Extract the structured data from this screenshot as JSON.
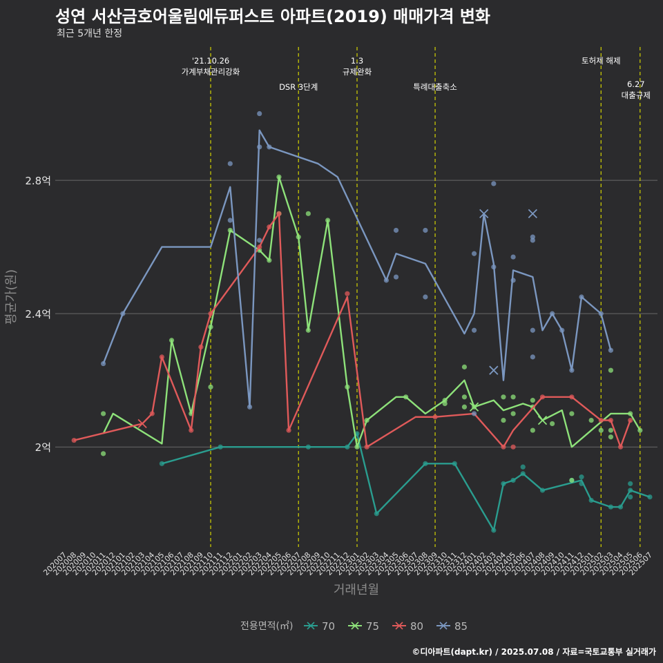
{
  "header": {
    "title": "성연 서산금호어울림에듀퍼스트 아파트(2019) 매매가격 변화",
    "subtitle": "최근 5개년 한정"
  },
  "caption": "©디아파트(dapt.kr) / 2025.07.08 / 자료=국토교통부 실거래가",
  "colors": {
    "background": "#2b2b2d",
    "grid": "#6a6a6a",
    "event_line": "#d4d400",
    "s70": "#2a9d8f",
    "s75": "#8ee27a",
    "s80": "#e05a5a",
    "s85": "#7b97c0"
  },
  "chart_data": {
    "type": "line",
    "xlabel": "거래년월",
    "ylabel": "평균가(원)",
    "x_categories": [
      "202007",
      "202008",
      "202009",
      "202010",
      "202011",
      "202012",
      "202101",
      "202102",
      "202103",
      "202104",
      "202105",
      "202106",
      "202107",
      "202108",
      "202109",
      "202110",
      "202111",
      "202112",
      "202201",
      "202202",
      "202203",
      "202204",
      "202205",
      "202206",
      "202207",
      "202208",
      "202209",
      "202210",
      "202211",
      "202212",
      "202301",
      "202302",
      "202303",
      "202304",
      "202305",
      "202306",
      "202307",
      "202308",
      "202309",
      "202310",
      "202311",
      "202312",
      "202401",
      "202402",
      "202403",
      "202404",
      "202405",
      "202406",
      "202407",
      "202408",
      "202409",
      "202410",
      "202411",
      "202412",
      "202501",
      "202502",
      "202503",
      "202504",
      "202505",
      "202506",
      "202507"
    ],
    "y_range_eok": [
      1.7,
      3.2
    ],
    "y_ticks": [
      {
        "value": 2.0,
        "label": "2억"
      },
      {
        "value": 2.4,
        "label": "2.4억"
      },
      {
        "value": 2.8,
        "label": "2.8억"
      }
    ],
    "grid": true,
    "legend": {
      "title": "전용면적(㎡)",
      "position": "bottom",
      "items": [
        {
          "label": "70",
          "series": "s70"
        },
        {
          "label": "75",
          "series": "s75"
        },
        {
          "label": "80",
          "series": "s80"
        },
        {
          "label": "85",
          "series": "s85"
        }
      ]
    },
    "events": [
      {
        "x": "202110",
        "lines": [
          "'21.10.26",
          "가계부채관리강화"
        ],
        "level": 0
      },
      {
        "x": "202207",
        "lines": [
          "DSR 3단계"
        ],
        "level": 1
      },
      {
        "x": "202301",
        "lines": [
          "1.3",
          "규제완화"
        ],
        "level": 0
      },
      {
        "x": "202309",
        "lines": [
          "특례대출축소"
        ],
        "level": 1
      },
      {
        "x": "202502",
        "lines": [
          "토허제 해제"
        ],
        "level": 0
      },
      {
        "x": "202506",
        "lines": [
          "6.27",
          "대출규제"
        ],
        "level": 2
      }
    ],
    "series": [
      {
        "name": "70",
        "color_key": "s70",
        "line": [
          [
            202105,
            1.95
          ],
          [
            202111,
            2.0
          ],
          [
            202212,
            2.0
          ],
          [
            202301,
            2.04
          ],
          [
            202303,
            1.8
          ],
          [
            202308,
            1.95
          ],
          [
            202311,
            1.95
          ],
          [
            202403,
            1.75
          ],
          [
            202404,
            1.89
          ],
          [
            202405,
            1.9
          ],
          [
            202406,
            1.92
          ],
          [
            202408,
            1.87
          ],
          [
            202412,
            1.9
          ],
          [
            202501,
            1.84
          ],
          [
            202503,
            1.82
          ],
          [
            202504,
            1.82
          ],
          [
            202505,
            1.87
          ],
          [
            202507,
            1.85
          ]
        ],
        "points": [
          [
            202105,
            1.95
          ],
          [
            202111,
            2.0
          ],
          [
            202208,
            2.0
          ],
          [
            202212,
            2.0
          ],
          [
            202301,
            2.04
          ],
          [
            202303,
            1.8
          ],
          [
            202308,
            1.95
          ],
          [
            202311,
            1.95
          ],
          [
            202403,
            1.75
          ],
          [
            202404,
            1.89
          ],
          [
            202405,
            1.9
          ],
          [
            202406,
            1.94
          ],
          [
            202406,
            1.92
          ],
          [
            202408,
            1.87
          ],
          [
            202411,
            1.9
          ],
          [
            202412,
            1.91
          ],
          [
            202412,
            1.89
          ],
          [
            202501,
            1.84
          ],
          [
            202503,
            1.82
          ],
          [
            202504,
            1.82
          ],
          [
            202505,
            1.87
          ],
          [
            202505,
            1.89
          ],
          [
            202505,
            1.85
          ],
          [
            202507,
            1.85
          ]
        ],
        "crosses": []
      },
      {
        "name": "75",
        "color_key": "s75",
        "line": [
          [
            202011,
            2.04
          ],
          [
            202012,
            2.1
          ],
          [
            202105,
            2.01
          ],
          [
            202106,
            2.32
          ],
          [
            202108,
            2.1
          ],
          [
            202110,
            2.36
          ],
          [
            202112,
            2.65
          ],
          [
            202203,
            2.59
          ],
          [
            202204,
            2.56
          ],
          [
            202205,
            2.81
          ],
          [
            202207,
            2.63
          ],
          [
            202208,
            2.35
          ],
          [
            202210,
            2.68
          ],
          [
            202212,
            2.18
          ],
          [
            202301,
            2.0
          ],
          [
            202302,
            2.08
          ],
          [
            202305,
            2.15
          ],
          [
            202306,
            2.15
          ],
          [
            202308,
            2.1
          ],
          [
            202310,
            2.14
          ],
          [
            202312,
            2.2
          ],
          [
            202401,
            2.12
          ],
          [
            202403,
            2.14
          ],
          [
            202404,
            2.11
          ],
          [
            202406,
            2.13
          ],
          [
            202407,
            2.12
          ],
          [
            202408,
            2.08
          ],
          [
            202410,
            2.11
          ],
          [
            202411,
            2.0
          ],
          [
            202501,
            2.05
          ],
          [
            202503,
            2.1
          ],
          [
            202505,
            2.1
          ],
          [
            202506,
            2.05
          ]
        ],
        "points": [
          [
            202011,
            2.1
          ],
          [
            202011,
            1.98
          ],
          [
            202106,
            2.32
          ],
          [
            202108,
            2.1
          ],
          [
            202110,
            2.18
          ],
          [
            202110,
            2.36
          ],
          [
            202112,
            2.65
          ],
          [
            202203,
            2.59
          ],
          [
            202204,
            2.56
          ],
          [
            202205,
            2.81
          ],
          [
            202205,
            2.7
          ],
          [
            202207,
            2.63
          ],
          [
            202208,
            2.7
          ],
          [
            202208,
            2.35
          ],
          [
            202210,
            2.68
          ],
          [
            202212,
            2.18
          ],
          [
            202301,
            2.0
          ],
          [
            202302,
            2.08
          ],
          [
            202306,
            2.15
          ],
          [
            202310,
            2.14
          ],
          [
            202310,
            2.13
          ],
          [
            202312,
            2.24
          ],
          [
            202312,
            2.15
          ],
          [
            202312,
            2.12
          ],
          [
            202401,
            2.12
          ],
          [
            202404,
            2.15
          ],
          [
            202404,
            2.08
          ],
          [
            202405,
            2.15
          ],
          [
            202405,
            2.1
          ],
          [
            202407,
            2.14
          ],
          [
            202407,
            2.12
          ],
          [
            202407,
            2.05
          ],
          [
            202409,
            2.07
          ],
          [
            202411,
            2.1
          ],
          [
            202411,
            1.9
          ],
          [
            202501,
            2.08
          ],
          [
            202502,
            2.05
          ],
          [
            202503,
            2.23
          ],
          [
            202503,
            2.05
          ],
          [
            202503,
            2.03
          ],
          [
            202505,
            2.1
          ],
          [
            202506,
            2.05
          ]
        ],
        "crosses": [
          [
            202401,
            2.12
          ],
          [
            202408,
            2.08
          ]
        ]
      },
      {
        "name": "80",
        "color_key": "s80",
        "line": [
          [
            202008,
            2.02
          ],
          [
            202103,
            2.07
          ],
          [
            202104,
            2.1
          ],
          [
            202105,
            2.27
          ],
          [
            202108,
            2.05
          ],
          [
            202109,
            2.3
          ],
          [
            202110,
            2.4
          ],
          [
            202203,
            2.6
          ],
          [
            202204,
            2.66
          ],
          [
            202205,
            2.7
          ],
          [
            202206,
            2.05
          ],
          [
            202212,
            2.45
          ],
          [
            202302,
            2.0
          ],
          [
            202307,
            2.09
          ],
          [
            202309,
            2.09
          ],
          [
            202401,
            2.1
          ],
          [
            202404,
            2.0
          ],
          [
            202405,
            2.05
          ],
          [
            202408,
            2.15
          ],
          [
            202411,
            2.15
          ],
          [
            202502,
            2.08
          ],
          [
            202503,
            2.08
          ],
          [
            202504,
            2.0
          ],
          [
            202505,
            2.08
          ]
        ],
        "points": [
          [
            202008,
            2.02
          ],
          [
            202104,
            2.1
          ],
          [
            202105,
            2.27
          ],
          [
            202108,
            2.05
          ],
          [
            202109,
            2.3
          ],
          [
            202110,
            2.4
          ],
          [
            202203,
            2.6
          ],
          [
            202204,
            2.66
          ],
          [
            202205,
            2.7
          ],
          [
            202206,
            2.05
          ],
          [
            202212,
            2.46
          ],
          [
            202302,
            2.0
          ],
          [
            202309,
            2.09
          ],
          [
            202404,
            2.0
          ],
          [
            202405,
            2.0
          ],
          [
            202408,
            2.15
          ],
          [
            202411,
            2.15
          ],
          [
            202502,
            2.08
          ],
          [
            202503,
            2.08
          ],
          [
            202504,
            2.0
          ],
          [
            202505,
            2.08
          ]
        ],
        "crosses": [
          [
            202103,
            2.07
          ]
        ]
      },
      {
        "name": "85",
        "color_key": "s85",
        "line": [
          [
            202011,
            2.25
          ],
          [
            202101,
            2.4
          ],
          [
            202105,
            2.6
          ],
          [
            202107,
            2.6
          ],
          [
            202110,
            2.6
          ],
          [
            202112,
            2.78
          ],
          [
            202202,
            2.12
          ],
          [
            202203,
            2.95
          ],
          [
            202204,
            2.9
          ],
          [
            202209,
            2.85
          ],
          [
            202211,
            2.81
          ],
          [
            202304,
            2.5
          ],
          [
            202305,
            2.58
          ],
          [
            202308,
            2.55
          ],
          [
            202312,
            2.34
          ],
          [
            202401,
            2.4
          ],
          [
            202402,
            2.7
          ],
          [
            202403,
            2.55
          ],
          [
            202404,
            2.2
          ],
          [
            202405,
            2.53
          ],
          [
            202407,
            2.51
          ],
          [
            202408,
            2.35
          ],
          [
            202409,
            2.4
          ],
          [
            202410,
            2.35
          ],
          [
            202411,
            2.23
          ],
          [
            202412,
            2.45
          ],
          [
            202502,
            2.4
          ],
          [
            202503,
            2.29
          ]
        ],
        "points": [
          [
            202011,
            2.25
          ],
          [
            202101,
            2.4
          ],
          [
            202112,
            2.85
          ],
          [
            202112,
            2.68
          ],
          [
            202202,
            2.12
          ],
          [
            202203,
            3.0
          ],
          [
            202203,
            2.9
          ],
          [
            202203,
            2.62
          ],
          [
            202204,
            2.9
          ],
          [
            202304,
            2.5
          ],
          [
            202305,
            2.65
          ],
          [
            202305,
            2.51
          ],
          [
            202308,
            2.65
          ],
          [
            202308,
            2.45
          ],
          [
            202401,
            2.58
          ],
          [
            202401,
            2.35
          ],
          [
            202401,
            2.1
          ],
          [
            202403,
            2.79
          ],
          [
            202403,
            2.54
          ],
          [
            202405,
            2.57
          ],
          [
            202405,
            2.5
          ],
          [
            202407,
            2.63
          ],
          [
            202407,
            2.62
          ],
          [
            202407,
            2.35
          ],
          [
            202407,
            2.27
          ],
          [
            202409,
            2.4
          ],
          [
            202410,
            2.35
          ],
          [
            202411,
            2.23
          ],
          [
            202412,
            2.45
          ],
          [
            202502,
            2.4
          ],
          [
            202503,
            2.29
          ]
        ],
        "crosses": [
          [
            202402,
            2.7
          ],
          [
            202403,
            2.23
          ],
          [
            202407,
            2.7
          ]
        ]
      }
    ]
  }
}
